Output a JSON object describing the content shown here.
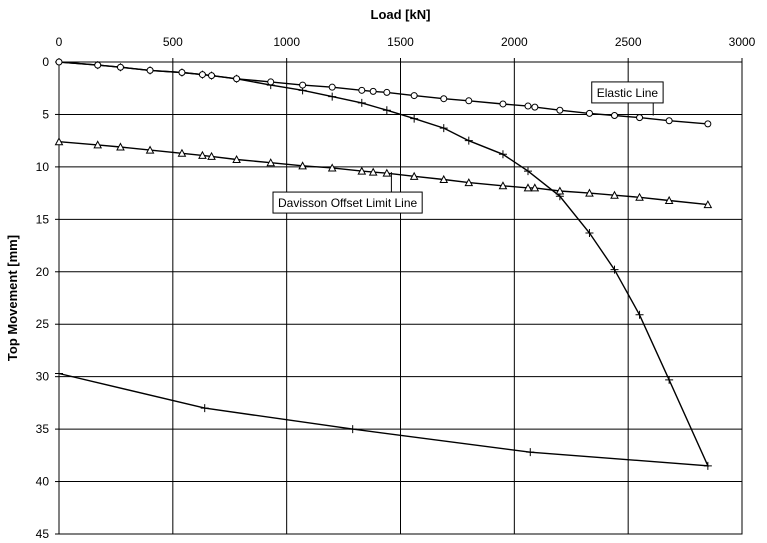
{
  "chart_data": {
    "type": "line",
    "title": "",
    "xlabel": "Load [kN]",
    "ylabel": "Top Movement [mm]",
    "x_axis_position": "top",
    "y_axis_inverted": true,
    "xlim": [
      0,
      3000
    ],
    "ylim": [
      0,
      45
    ],
    "xticks": [
      0,
      500,
      1000,
      1500,
      2000,
      2500,
      3000
    ],
    "yticks": [
      0,
      5,
      10,
      15,
      20,
      25,
      30,
      35,
      40,
      45
    ],
    "grid": true,
    "legend": "none",
    "series": [
      {
        "marker": "plus",
        "x": [
          0,
          170,
          270,
          400,
          540,
          630,
          670,
          780,
          930,
          1070,
          1200,
          1330,
          1440,
          1560,
          1690,
          1800,
          1950,
          2060,
          2200,
          2330,
          2440,
          2550,
          2680,
          2850,
          2070,
          1290,
          640,
          0
        ],
        "y": [
          0,
          0.3,
          0.5,
          0.8,
          1.0,
          1.2,
          1.3,
          1.6,
          2.2,
          2.7,
          3.3,
          3.9,
          4.6,
          5.4,
          6.3,
          7.5,
          8.8,
          10.4,
          12.8,
          16.3,
          19.8,
          24.1,
          30.3,
          38.5,
          37.2,
          35.0,
          33.0,
          29.7
        ]
      },
      {
        "marker": "circle",
        "x": [
          0,
          170,
          270,
          400,
          540,
          630,
          670,
          780,
          930,
          1070,
          1200,
          1330,
          1380,
          1440,
          1560,
          1690,
          1800,
          1950,
          2060,
          2090,
          2200,
          2330,
          2440,
          2550,
          2680,
          2850
        ],
        "y": [
          0,
          0.3,
          0.5,
          0.8,
          1.0,
          1.2,
          1.3,
          1.6,
          1.9,
          2.2,
          2.4,
          2.7,
          2.8,
          2.9,
          3.2,
          3.5,
          3.7,
          4.0,
          4.2,
          4.3,
          4.6,
          4.9,
          5.1,
          5.3,
          5.6,
          5.9
        ]
      },
      {
        "marker": "triangle",
        "x": [
          0,
          170,
          270,
          400,
          540,
          630,
          670,
          780,
          930,
          1070,
          1200,
          1330,
          1380,
          1440,
          1560,
          1690,
          1800,
          1950,
          2060,
          2090,
          2200,
          2330,
          2440,
          2550,
          2680,
          2850
        ],
        "y": [
          7.6,
          7.9,
          8.1,
          8.4,
          8.7,
          8.9,
          9.0,
          9.3,
          9.6,
          9.9,
          10.1,
          10.4,
          10.5,
          10.6,
          10.9,
          11.2,
          11.5,
          11.8,
          12.0,
          12.0,
          12.3,
          12.5,
          12.7,
          12.9,
          13.2,
          13.6
        ]
      }
    ],
    "annotations": [
      {
        "text": "Elastic Line",
        "x": 2610,
        "y": 5.1,
        "box_data_x": 2340,
        "box_data_y": 1.9
      },
      {
        "text": "Davisson Offset Limit Line",
        "x": 1460,
        "y": 10.5,
        "box_data_x": 940,
        "box_data_y": 12.4
      }
    ]
  }
}
